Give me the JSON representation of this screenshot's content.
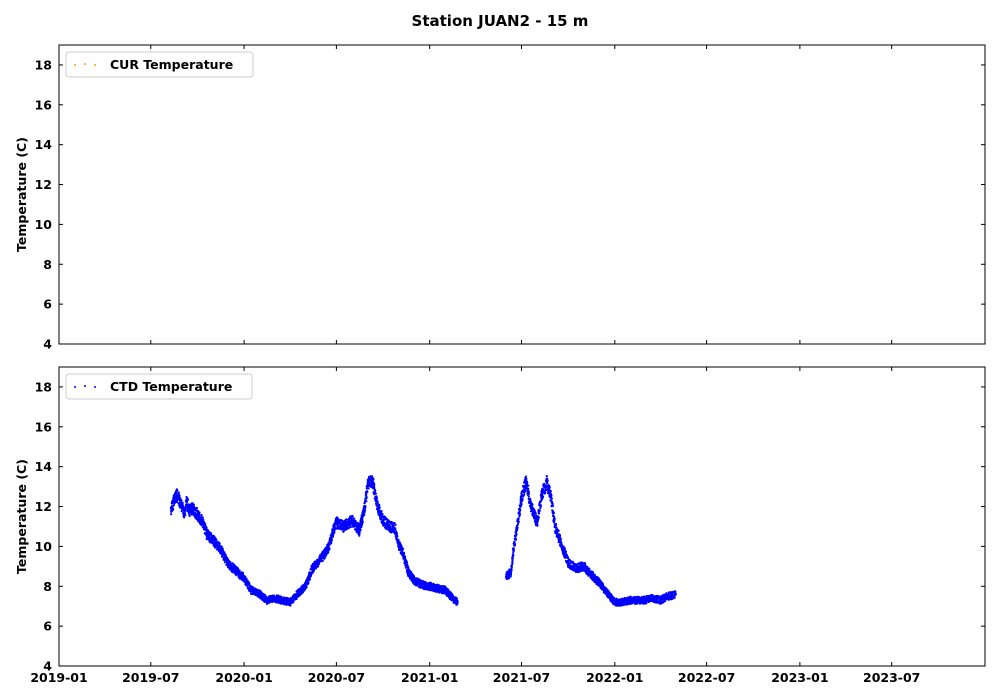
{
  "title": "Station JUAN2 - 15 m",
  "chart_data": [
    {
      "type": "scatter",
      "title": "",
      "ylabel": "Temperature (C)",
      "xlabel": "",
      "ylim": [
        4,
        19
      ],
      "yticks": [
        4,
        6,
        8,
        10,
        12,
        14,
        16,
        18
      ],
      "xlim": [
        "2019-01-01",
        "2024-01-01"
      ],
      "xticks": [
        "2019-01",
        "2019-07",
        "2020-01",
        "2020-07",
        "2021-01",
        "2021-07",
        "2022-01",
        "2022-07",
        "2023-01",
        "2023-07"
      ],
      "show_xtick_labels": false,
      "grid": false,
      "legend_position": "upper-left",
      "series": [
        {
          "name": "CUR Temperature",
          "color": "#ffa500",
          "points": []
        }
      ]
    },
    {
      "type": "scatter",
      "title": "",
      "ylabel": "Temperature (C)",
      "xlabel": "",
      "ylim": [
        4,
        19
      ],
      "yticks": [
        4,
        6,
        8,
        10,
        12,
        14,
        16,
        18
      ],
      "xlim": [
        "2019-01-01",
        "2024-01-01"
      ],
      "xticks": [
        "2019-01",
        "2019-07",
        "2020-01",
        "2020-07",
        "2021-01",
        "2021-07",
        "2022-01",
        "2022-07",
        "2023-01",
        "2023-07"
      ],
      "show_xtick_labels": true,
      "grid": false,
      "legend_position": "upper-left",
      "series": [
        {
          "name": "CTD Temperature",
          "color": "#0000ff",
          "points": [
            [
              "2019-08-10",
              11.9
            ],
            [
              "2019-08-15",
              12.2
            ],
            [
              "2019-08-20",
              12.6
            ],
            [
              "2019-08-25",
              12.4
            ],
            [
              "2019-09-01",
              12.0
            ],
            [
              "2019-09-05",
              11.6
            ],
            [
              "2019-09-10",
              12.3
            ],
            [
              "2019-09-15",
              11.8
            ],
            [
              "2019-09-22",
              11.9
            ],
            [
              "2019-10-01",
              11.6
            ],
            [
              "2019-10-10",
              11.3
            ],
            [
              "2019-10-20",
              10.6
            ],
            [
              "2019-11-01",
              10.3
            ],
            [
              "2019-11-15",
              9.9
            ],
            [
              "2019-12-01",
              9.1
            ],
            [
              "2019-12-15",
              8.8
            ],
            [
              "2020-01-01",
              8.4
            ],
            [
              "2020-01-15",
              7.8
            ],
            [
              "2020-02-01",
              7.6
            ],
            [
              "2020-02-15",
              7.3
            ],
            [
              "2020-03-01",
              7.4
            ],
            [
              "2020-03-15",
              7.3
            ],
            [
              "2020-04-01",
              7.2
            ],
            [
              "2020-04-15",
              7.6
            ],
            [
              "2020-05-01",
              8.0
            ],
            [
              "2020-05-15",
              8.9
            ],
            [
              "2020-06-01",
              9.4
            ],
            [
              "2020-06-15",
              9.9
            ],
            [
              "2020-06-25",
              10.8
            ],
            [
              "2020-07-01",
              11.2
            ],
            [
              "2020-07-15",
              11.0
            ],
            [
              "2020-08-01",
              11.3
            ],
            [
              "2020-08-15",
              10.8
            ],
            [
              "2020-08-25",
              11.8
            ],
            [
              "2020-09-01",
              13.1
            ],
            [
              "2020-09-10",
              13.3
            ],
            [
              "2020-09-20",
              12.0
            ],
            [
              "2020-10-01",
              11.3
            ],
            [
              "2020-10-15",
              11.0
            ],
            [
              "2020-10-25",
              10.9
            ],
            [
              "2020-11-01",
              10.1
            ],
            [
              "2020-11-10",
              9.6
            ],
            [
              "2020-11-20",
              8.7
            ],
            [
              "2020-12-01",
              8.3
            ],
            [
              "2020-12-15",
              8.1
            ],
            [
              "2021-01-01",
              8.0
            ],
            [
              "2021-01-15",
              7.9
            ],
            [
              "2021-02-01",
              7.8
            ],
            [
              "2021-02-15",
              7.4
            ],
            [
              "2021-02-25",
              7.2
            ],
            [
              "2021-06-01",
              8.5
            ],
            [
              "2021-06-10",
              8.7
            ],
            [
              "2021-06-15",
              9.8
            ],
            [
              "2021-06-25",
              11.4
            ],
            [
              "2021-07-01",
              12.4
            ],
            [
              "2021-07-10",
              13.3
            ],
            [
              "2021-07-20",
              12.0
            ],
            [
              "2021-08-01",
              11.2
            ],
            [
              "2021-08-10",
              12.6
            ],
            [
              "2021-08-20",
              13.2
            ],
            [
              "2021-08-28",
              12.5
            ],
            [
              "2021-09-05",
              11.0
            ],
            [
              "2021-09-15",
              10.3
            ],
            [
              "2021-10-01",
              9.2
            ],
            [
              "2021-10-15",
              8.9
            ],
            [
              "2021-11-01",
              9.0
            ],
            [
              "2021-11-15",
              8.6
            ],
            [
              "2021-12-01",
              8.2
            ],
            [
              "2021-12-15",
              7.7
            ],
            [
              "2022-01-01",
              7.2
            ],
            [
              "2022-01-15",
              7.2
            ],
            [
              "2022-02-01",
              7.3
            ],
            [
              "2022-02-15",
              7.3
            ],
            [
              "2022-03-01",
              7.3
            ],
            [
              "2022-03-15",
              7.4
            ],
            [
              "2022-04-01",
              7.3
            ],
            [
              "2022-04-15",
              7.5
            ],
            [
              "2022-05-01",
              7.6
            ]
          ]
        }
      ]
    }
  ]
}
